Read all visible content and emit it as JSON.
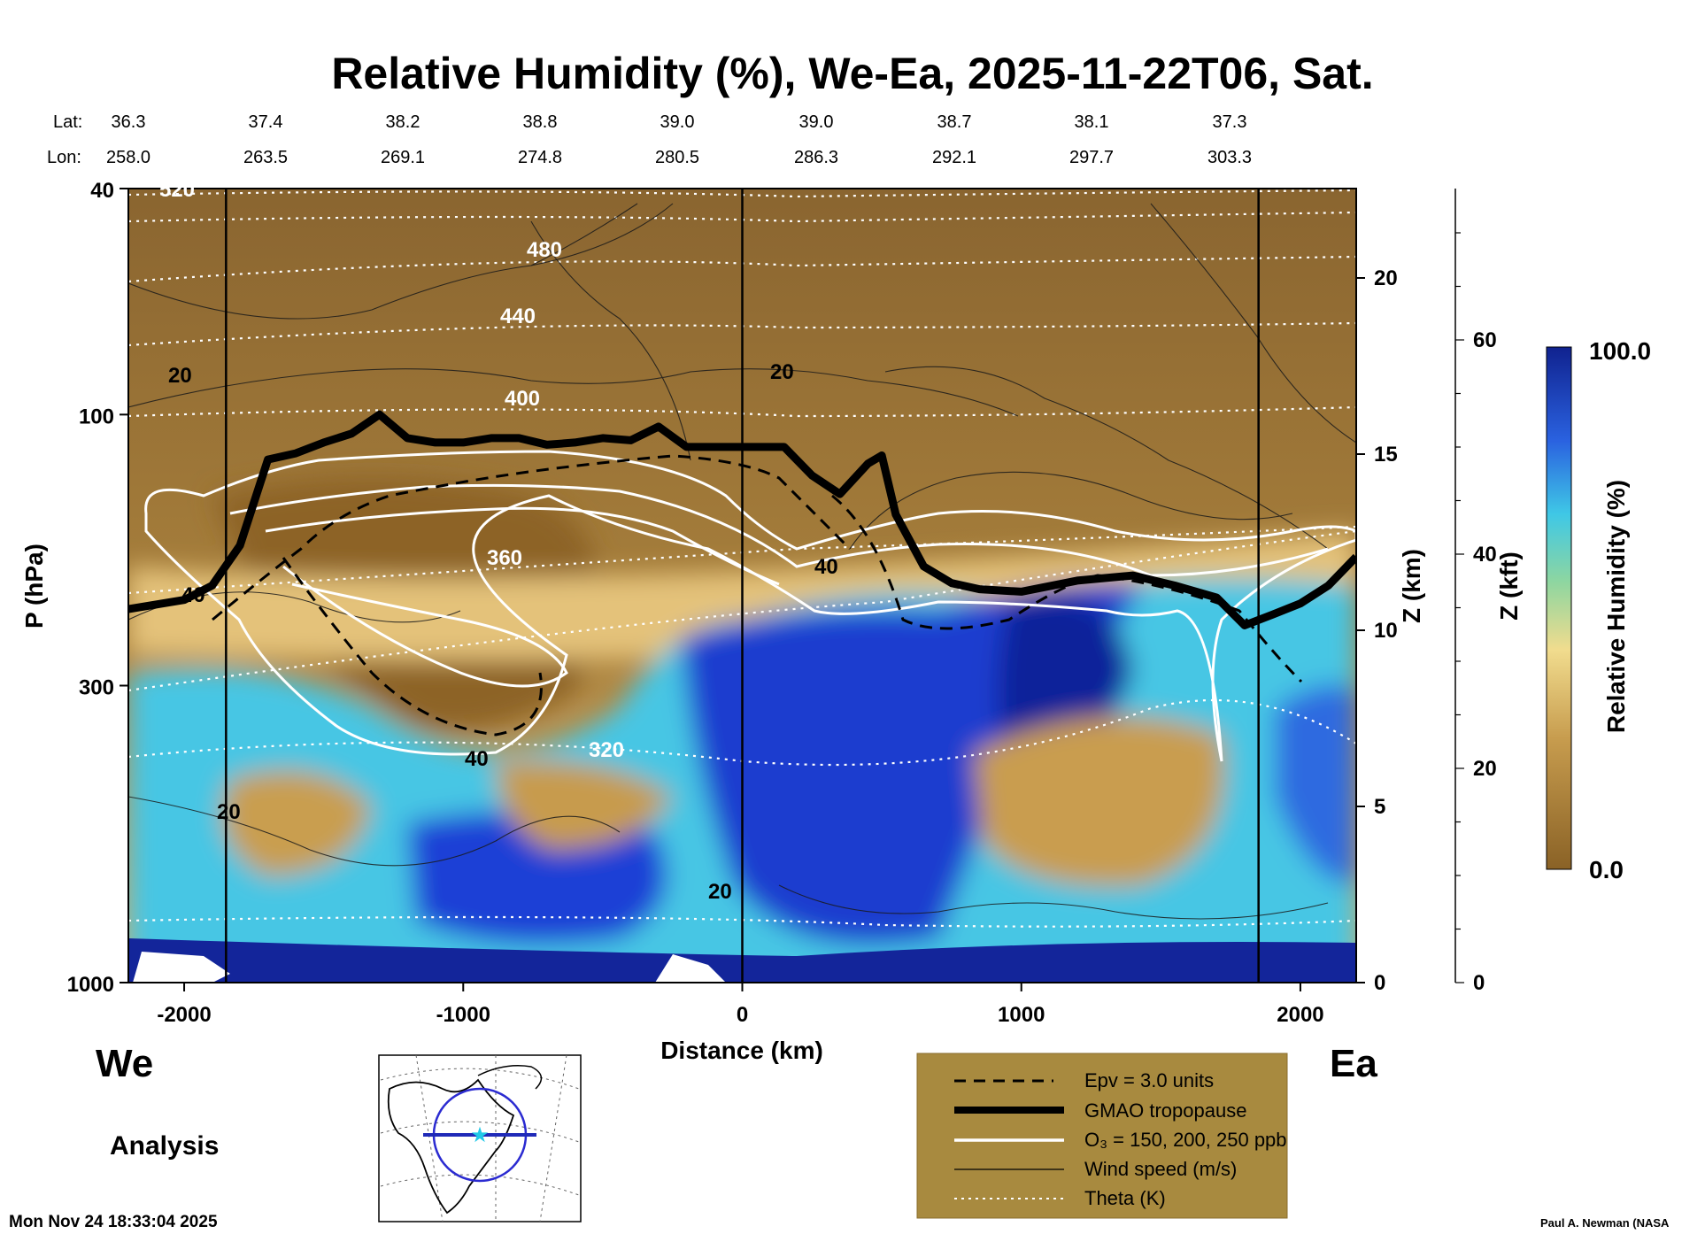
{
  "chart_data": {
    "type": "heatmap",
    "title": "Relative Humidity (%), We-Ea, 2025-11-22T06, Sat.",
    "xlabel": "Distance (km)",
    "ylabel": "P (hPa)",
    "z_km_label": "Z (km)",
    "z_kft_label": "Z (kft)",
    "xlim": [
      -2200,
      2200
    ],
    "ylim_hpa": [
      1000,
      40
    ],
    "x_ticks": [
      {
        "value": -2000,
        "label": "-2000"
      },
      {
        "value": -1000,
        "label": "-1000"
      },
      {
        "value": 0,
        "label": "0"
      },
      {
        "value": 1000,
        "label": "1000"
      },
      {
        "value": 2000,
        "label": "2000"
      }
    ],
    "p_ticks": [
      {
        "value": 40,
        "label": "40"
      },
      {
        "value": 100,
        "label": "100"
      },
      {
        "value": 300,
        "label": "300"
      },
      {
        "value": 1000,
        "label": "1000"
      }
    ],
    "z_km_ticks": [
      {
        "value": 0,
        "label": "0"
      },
      {
        "value": 5,
        "label": "5"
      },
      {
        "value": 10,
        "label": "10"
      },
      {
        "value": 15,
        "label": "15"
      },
      {
        "value": 20,
        "label": "20"
      }
    ],
    "z_kft_ticks": [
      {
        "value": 0,
        "label": "0"
      },
      {
        "value": 20,
        "label": "20"
      },
      {
        "value": 40,
        "label": "40"
      },
      {
        "value": 60,
        "label": "60"
      }
    ],
    "lat_label": "Lat:",
    "lon_label": "Lon:",
    "stations": [
      {
        "x": -2200,
        "lat": "36.3",
        "lon": "258.0"
      },
      {
        "x": -1700,
        "lat": "37.4",
        "lon": "263.5"
      },
      {
        "x": -1200,
        "lat": "38.2",
        "lon": "269.1"
      },
      {
        "x": -700,
        "lat": "38.8",
        "lon": "274.8"
      },
      {
        "x": -200,
        "lat": "39.0",
        "lon": "280.5"
      },
      {
        "x": 300,
        "lat": "39.0",
        "lon": "286.3"
      },
      {
        "x": 800,
        "lat": "38.7",
        "lon": "292.1"
      },
      {
        "x": 1300,
        "lat": "38.1",
        "lon": "297.7"
      },
      {
        "x": 1800,
        "lat": "37.3",
        "lon": "303.3"
      }
    ],
    "vertical_markers_km": [
      -1850,
      0,
      1850
    ],
    "colorbar": {
      "label": "Relative Humidity (%)",
      "min": "0.0",
      "max": "100.0"
    },
    "theta_contours": [
      {
        "label": "320",
        "x": 512.0,
        "y": 0.72
      },
      {
        "label": "360",
        "x": -700,
        "y": 0.47
      },
      {
        "label": "400",
        "x": -800,
        "y": 0.27
      },
      {
        "label": "440",
        "x": -800,
        "y": 0.16
      },
      {
        "label": "480",
        "x": -700,
        "y": 0.075
      },
      {
        "label": "520",
        "x": -2100,
        "y": 0.0
      }
    ],
    "tropopause_hpa": [
      {
        "x": -2200,
        "p": 220
      },
      {
        "x": -2000,
        "p": 212
      },
      {
        "x": -1900,
        "p": 200
      },
      {
        "x": -1800,
        "p": 170
      },
      {
        "x": -1700,
        "p": 120
      },
      {
        "x": -1600,
        "p": 117
      },
      {
        "x": -1500,
        "p": 112
      },
      {
        "x": -1400,
        "p": 108
      },
      {
        "x": -1300,
        "p": 100
      },
      {
        "x": -1200,
        "p": 110
      },
      {
        "x": -1100,
        "p": 112
      },
      {
        "x": -1000,
        "p": 112
      },
      {
        "x": -900,
        "p": 110
      },
      {
        "x": -800,
        "p": 110
      },
      {
        "x": -700,
        "p": 113
      },
      {
        "x": -600,
        "p": 112
      },
      {
        "x": -500,
        "p": 110
      },
      {
        "x": -400,
        "p": 111
      },
      {
        "x": -300,
        "p": 105
      },
      {
        "x": -200,
        "p": 114
      },
      {
        "x": 0,
        "p": 114
      },
      {
        "x": 150,
        "p": 114
      },
      {
        "x": 250,
        "p": 128
      },
      {
        "x": 350,
        "p": 138
      },
      {
        "x": 450,
        "p": 122
      },
      {
        "x": 500,
        "p": 118
      },
      {
        "x": 550,
        "p": 150
      },
      {
        "x": 650,
        "p": 185
      },
      {
        "x": 750,
        "p": 198
      },
      {
        "x": 850,
        "p": 203
      },
      {
        "x": 1000,
        "p": 205
      },
      {
        "x": 1200,
        "p": 196
      },
      {
        "x": 1400,
        "p": 192
      },
      {
        "x": 1550,
        "p": 200
      },
      {
        "x": 1700,
        "p": 210
      },
      {
        "x": 1800,
        "p": 235
      },
      {
        "x": 1900,
        "p": 225
      },
      {
        "x": 2000,
        "p": 215
      },
      {
        "x": 2100,
        "p": 200
      },
      {
        "x": 2200,
        "p": 178
      }
    ],
    "wind_speed_labels": [
      "20",
      "40"
    ],
    "ozone_levels_ppb": [
      150,
      200,
      250
    ]
  },
  "labels": {
    "west": "We",
    "east": "Ea",
    "analysis": "Analysis",
    "timestamp": "Mon Nov 24 18:33:04 2025",
    "credit": "Paul A. Newman (NASA"
  },
  "legend": {
    "items": [
      {
        "style": "dashed",
        "label": "Epv = 3.0 units"
      },
      {
        "style": "thick",
        "label": "GMAO tropopause"
      },
      {
        "style": "white",
        "label": "O₃ = 150, 200, 250 ppb"
      },
      {
        "style": "thin",
        "label": "Wind speed (m/s)"
      },
      {
        "style": "dotted",
        "label": "Theta (K)"
      }
    ]
  },
  "colors": {
    "dry_dark": "#8a6226",
    "dry_mid": "#a87d3a",
    "dry_light": "#d9b268",
    "moist_cyan": "#49c9e8",
    "moist_blue": "#1e3fd6",
    "moist_dark": "#10228f",
    "legend_bg": "#a88a3f"
  }
}
